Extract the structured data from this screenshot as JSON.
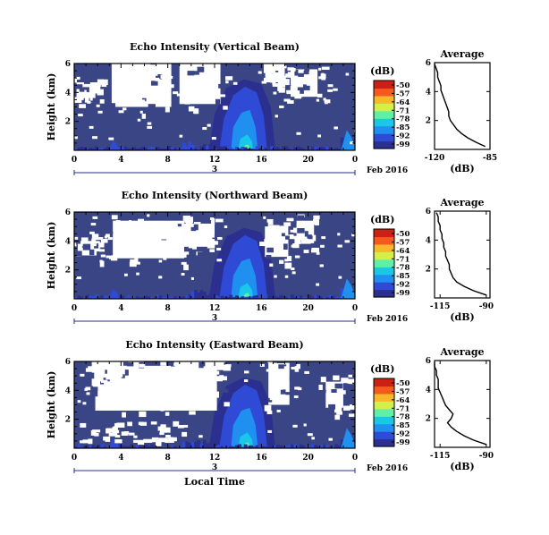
{
  "colors": {
    "background_fill": "#3a4585",
    "colormap": [
      "#2b2f8f",
      "#2f4bd6",
      "#1f8ff0",
      "#19c8e8",
      "#5ff0a8",
      "#d2f04a",
      "#f8b82a",
      "#f45a1e",
      "#cc1f16"
    ]
  },
  "chart_data": [
    {
      "type": "heatmap",
      "title": "Echo Intensity (Vertical Beam)",
      "ylabel": "Height (km)",
      "xlabel": "",
      "ylim": [
        0,
        6
      ],
      "yticks": [
        "6",
        "4",
        "2"
      ],
      "xlim": [
        0,
        24
      ],
      "xticks": [
        "0",
        "4",
        "8",
        "12",
        "16",
        "20",
        "0"
      ],
      "date_marker": "3",
      "date_label": "Feb 2016",
      "colorbar": {
        "unit": "(dB)",
        "ticks": [
          "-50",
          "-57",
          "-64",
          "-71",
          "-78",
          "-85",
          "-92",
          "-99"
        ]
      },
      "average_profile": {
        "title": "Average",
        "xlabel": "(dB)",
        "xticks": [
          "-120",
          "-85"
        ],
        "xlim": [
          -120,
          -85
        ],
        "yticks": [
          "6",
          "4",
          "2"
        ],
        "ylim": [
          0,
          6
        ],
        "height": [
          0.2,
          0.5,
          0.8,
          1.1,
          1.4,
          1.7,
          2.0,
          2.3,
          2.6,
          2.9,
          3.2,
          3.5,
          3.8,
          4.1,
          4.4,
          4.7,
          5.0,
          5.3,
          5.6,
          5.9
        ],
        "db": [
          -88,
          -94,
          -99,
          -103,
          -106,
          -108,
          -110,
          -111,
          -111,
          -112,
          -113,
          -114,
          -115,
          -116,
          -116,
          -117,
          -118,
          -118,
          -119,
          -120
        ]
      }
    },
    {
      "type": "heatmap",
      "title": "Echo Intensity (Northward Beam)",
      "ylabel": "Height (km)",
      "xlabel": "",
      "ylim": [
        0,
        6
      ],
      "yticks": [
        "6",
        "4",
        "2"
      ],
      "xlim": [
        0,
        24
      ],
      "xticks": [
        "0",
        "4",
        "8",
        "12",
        "16",
        "20",
        "0"
      ],
      "date_marker": "3",
      "date_label": "Feb 2016",
      "colorbar": {
        "unit": "(dB)",
        "ticks": [
          "-50",
          "-57",
          "-64",
          "-71",
          "-78",
          "-85",
          "-92",
          "-99"
        ]
      },
      "average_profile": {
        "title": "Average",
        "xlabel": "(dB)",
        "xticks": [
          "-115",
          "-90"
        ],
        "xlim": [
          -118,
          -88
        ],
        "yticks": [
          "6",
          "4",
          "2"
        ],
        "ylim": [
          0,
          6
        ],
        "height": [
          0.2,
          0.5,
          0.8,
          1.1,
          1.4,
          1.7,
          2.0,
          2.3,
          2.6,
          2.9,
          3.2,
          3.5,
          3.8,
          4.1,
          4.4,
          4.7,
          5.0,
          5.3,
          5.6,
          5.9
        ],
        "db": [
          -90,
          -97,
          -102,
          -106,
          -108,
          -109,
          -110,
          -110,
          -111,
          -112,
          -112,
          -113,
          -113,
          -114,
          -114,
          -115,
          -115,
          -116,
          -116,
          -117
        ]
      }
    },
    {
      "type": "heatmap",
      "title": "Echo Intensity (Eastward Beam)",
      "ylabel": "Height (km)",
      "xlabel": "Local Time",
      "ylim": [
        0,
        6
      ],
      "yticks": [
        "6",
        "4",
        "2"
      ],
      "xlim": [
        0,
        24
      ],
      "xticks": [
        "0",
        "4",
        "8",
        "12",
        "16",
        "20",
        "0"
      ],
      "date_marker": "3",
      "date_label": "Feb 2016",
      "colorbar": {
        "unit": "(dB)",
        "ticks": [
          "-50",
          "-57",
          "-64",
          "-71",
          "-78",
          "-85",
          "-92",
          "-99"
        ]
      },
      "average_profile": {
        "title": "Average",
        "xlabel": "(dB)",
        "xticks": [
          "-115",
          "-90"
        ],
        "xlim": [
          -118,
          -88
        ],
        "yticks": [
          "6",
          "4",
          "2"
        ],
        "ylim": [
          0,
          6
        ],
        "height": [
          0.2,
          0.5,
          0.8,
          1.1,
          1.4,
          1.7,
          2.0,
          2.3,
          2.6,
          2.9,
          3.2,
          3.5,
          3.8,
          4.1,
          4.4,
          4.7,
          5.0,
          5.3,
          5.6,
          5.9
        ],
        "db": [
          -90,
          -97,
          -102,
          -106,
          -109,
          -111,
          -109,
          -108,
          -110,
          -112,
          -113,
          -114,
          -115,
          -116,
          -116,
          -116,
          -117,
          -117,
          -118,
          -118
        ]
      }
    }
  ]
}
